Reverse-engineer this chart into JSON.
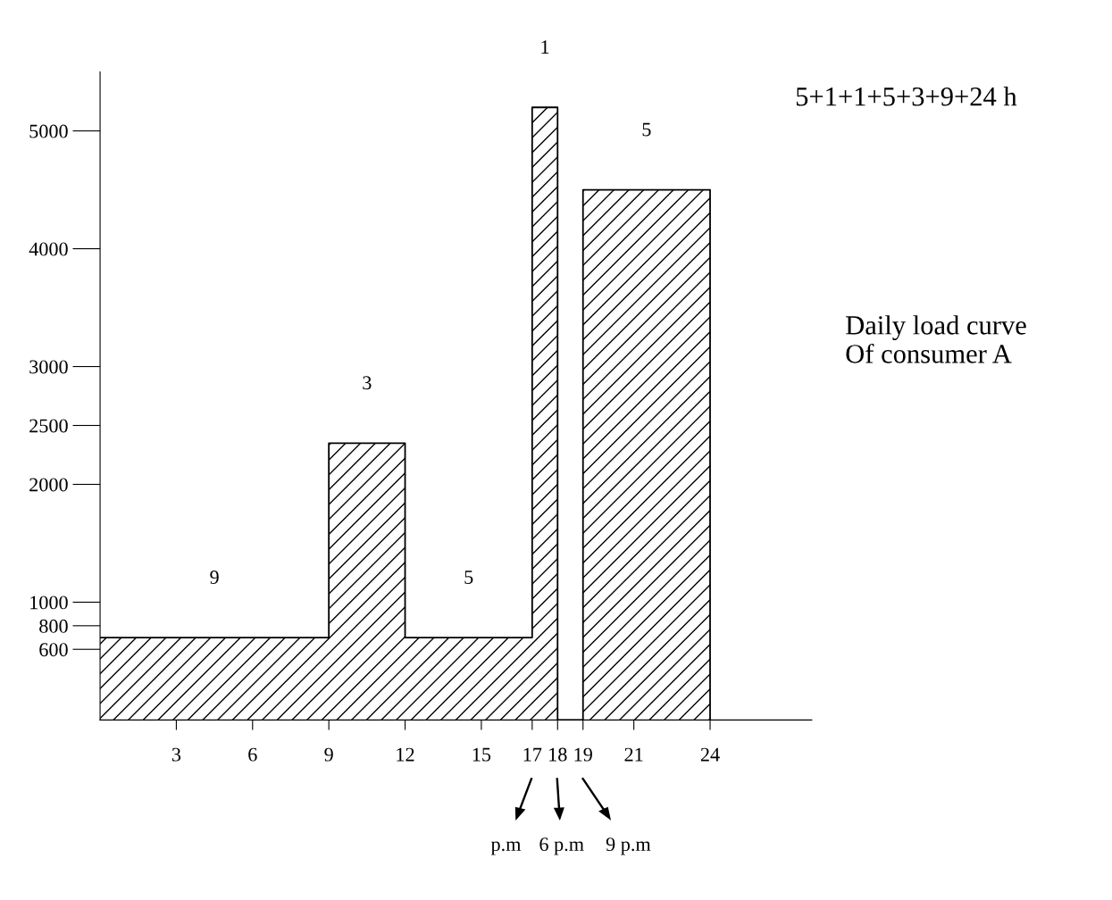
{
  "chart_data": {
    "type": "area",
    "title": "Daily load curve\nOf consumer A",
    "x": [
      0,
      9,
      9,
      12,
      12,
      17,
      17,
      18,
      18,
      19,
      19,
      24,
      24
    ],
    "series": [
      {
        "color": "#000000",
        "values": [
          700,
          700,
          2350,
          2350,
          700,
          700,
          5200,
          5200,
          0,
          0,
          4500,
          4500,
          0
        ]
      }
    ],
    "xlim": [
      0,
      28
    ],
    "ylim": [
      0,
      5500
    ],
    "xticks": [
      3,
      6,
      9,
      12,
      15,
      17,
      18,
      19,
      21,
      24
    ],
    "yticks": [
      600,
      800,
      1000,
      2000,
      2500,
      3000,
      4000,
      5000
    ],
    "annotations": [
      "5+1+1+5+3+9+24 h",
      {
        "text": "9",
        "x": 4.5,
        "y": 700
      },
      {
        "text": "3",
        "x": 10.5,
        "y": 2350
      },
      {
        "text": "5",
        "x": 14.5,
        "y": 700
      },
      {
        "text": "1",
        "x": 17.5,
        "y": 5200
      },
      {
        "text": "5",
        "x": 21.5,
        "y": 4500
      },
      "p.m",
      "6 p.m",
      "9 p.m"
    ]
  }
}
